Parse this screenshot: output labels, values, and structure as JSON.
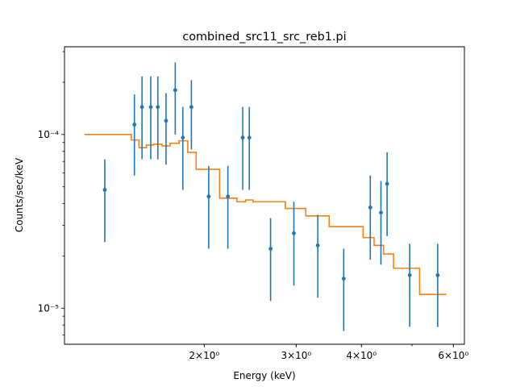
{
  "chart_data": {
    "type": "scatter",
    "title": "combined_src11_src_reb1.pi",
    "xlabel": "Energy (keV)",
    "ylabel": "Counts/sec/keV",
    "xscale": "log",
    "yscale": "log",
    "xlim": [
      1.08,
      6.3
    ],
    "ylim": [
      6.2e-06,
      0.00032
    ],
    "grid": false,
    "x_ticks": [
      {
        "value": 2,
        "label": "2×10⁰"
      },
      {
        "value": 3,
        "label": "3×10⁰"
      },
      {
        "value": 4,
        "label": "4×10⁰"
      },
      {
        "value": 6,
        "label": "6×10⁰"
      }
    ],
    "y_ticks": [
      {
        "value": 1e-05,
        "label": "10⁻⁵"
      },
      {
        "value": 0.0001,
        "label": "10⁻⁴"
      }
    ],
    "colors": {
      "data": "#1f77b4",
      "model": "#ff7f0e"
    },
    "series": [
      {
        "style": "errorbar",
        "points": [
          {
            "x": 1.29,
            "y": 4.8e-05,
            "ylo": 2.4e-05,
            "yhi": 7.2e-05
          },
          {
            "x": 1.47,
            "y": 0.000114,
            "ylo": 5.8e-05,
            "yhi": 0.00017
          },
          {
            "x": 1.52,
            "y": 0.000144,
            "ylo": 7.2e-05,
            "yhi": 0.000216
          },
          {
            "x": 1.58,
            "y": 0.000144,
            "ylo": 7.2e-05,
            "yhi": 0.000216
          },
          {
            "x": 1.63,
            "y": 0.000144,
            "ylo": 7.2e-05,
            "yhi": 0.000216
          },
          {
            "x": 1.69,
            "y": 0.00012,
            "ylo": 6.7e-05,
            "yhi": 0.000173
          },
          {
            "x": 1.76,
            "y": 0.00018,
            "ylo": 0.0001,
            "yhi": 0.00026
          },
          {
            "x": 1.82,
            "y": 9.6e-05,
            "ylo": 4.8e-05,
            "yhi": 0.000144
          },
          {
            "x": 1.89,
            "y": 0.000144,
            "ylo": 8.2e-05,
            "yhi": 0.000206
          },
          {
            "x": 2.04,
            "y": 4.4e-05,
            "ylo": 2.2e-05,
            "yhi": 6.6e-05
          },
          {
            "x": 2.22,
            "y": 4.4e-05,
            "ylo": 2.2e-05,
            "yhi": 6.6e-05
          },
          {
            "x": 2.37,
            "y": 9.6e-05,
            "ylo": 4.8e-05,
            "yhi": 0.000144
          },
          {
            "x": 2.44,
            "y": 9.6e-05,
            "ylo": 4.8e-05,
            "yhi": 0.000144
          },
          {
            "x": 2.68,
            "y": 2.2e-05,
            "ylo": 1.1e-05,
            "yhi": 3.3e-05
          },
          {
            "x": 2.97,
            "y": 2.7e-05,
            "ylo": 1.35e-05,
            "yhi": 4.1e-05
          },
          {
            "x": 3.3,
            "y": 2.3e-05,
            "ylo": 1.15e-05,
            "yhi": 3.45e-05
          },
          {
            "x": 3.7,
            "y": 1.48e-05,
            "ylo": 7.4e-06,
            "yhi": 2.2e-05
          },
          {
            "x": 4.16,
            "y": 3.8e-05,
            "ylo": 1.9e-05,
            "yhi": 5.8e-05
          },
          {
            "x": 4.36,
            "y": 3.55e-05,
            "ylo": 1.78e-05,
            "yhi": 5.4e-05
          },
          {
            "x": 4.48,
            "y": 5.2e-05,
            "ylo": 2.6e-05,
            "yhi": 7.9e-05
          },
          {
            "x": 4.95,
            "y": 1.55e-05,
            "ylo": 7.8e-06,
            "yhi": 2.35e-05
          },
          {
            "x": 5.6,
            "y": 1.55e-05,
            "ylo": 7.8e-06,
            "yhi": 2.35e-05
          }
        ]
      },
      {
        "style": "step",
        "segments": [
          {
            "x0": 1.18,
            "x1": 1.45,
            "y": 0.0001
          },
          {
            "x0": 1.45,
            "x1": 1.5,
            "y": 9.3e-05
          },
          {
            "x0": 1.5,
            "x1": 1.55,
            "y": 8.4e-05
          },
          {
            "x0": 1.55,
            "x1": 1.6,
            "y": 8.7e-05
          },
          {
            "x0": 1.6,
            "x1": 1.66,
            "y": 8.8e-05
          },
          {
            "x0": 1.66,
            "x1": 1.72,
            "y": 8.6e-05
          },
          {
            "x0": 1.72,
            "x1": 1.79,
            "y": 8.9e-05
          },
          {
            "x0": 1.79,
            "x1": 1.86,
            "y": 9.2e-05
          },
          {
            "x0": 1.86,
            "x1": 1.93,
            "y": 7.9e-05
          },
          {
            "x0": 1.93,
            "x1": 2.14,
            "y": 6.3e-05
          },
          {
            "x0": 2.14,
            "x1": 2.31,
            "y": 4.3e-05
          },
          {
            "x0": 2.31,
            "x1": 2.4,
            "y": 4.1e-05
          },
          {
            "x0": 2.4,
            "x1": 2.48,
            "y": 4.2e-05
          },
          {
            "x0": 2.48,
            "x1": 2.86,
            "y": 4.1e-05
          },
          {
            "x0": 2.86,
            "x1": 3.13,
            "y": 3.75e-05
          },
          {
            "x0": 3.13,
            "x1": 3.47,
            "y": 3.4e-05
          },
          {
            "x0": 3.47,
            "x1": 4.03,
            "y": 2.95e-05
          },
          {
            "x0": 4.03,
            "x1": 4.23,
            "y": 2.55e-05
          },
          {
            "x0": 4.23,
            "x1": 4.41,
            "y": 2.3e-05
          },
          {
            "x0": 4.41,
            "x1": 4.61,
            "y": 2.05e-05
          },
          {
            "x0": 4.61,
            "x1": 5.17,
            "y": 1.7e-05
          },
          {
            "x0": 5.17,
            "x1": 5.82,
            "y": 1.2e-05
          }
        ]
      }
    ]
  }
}
